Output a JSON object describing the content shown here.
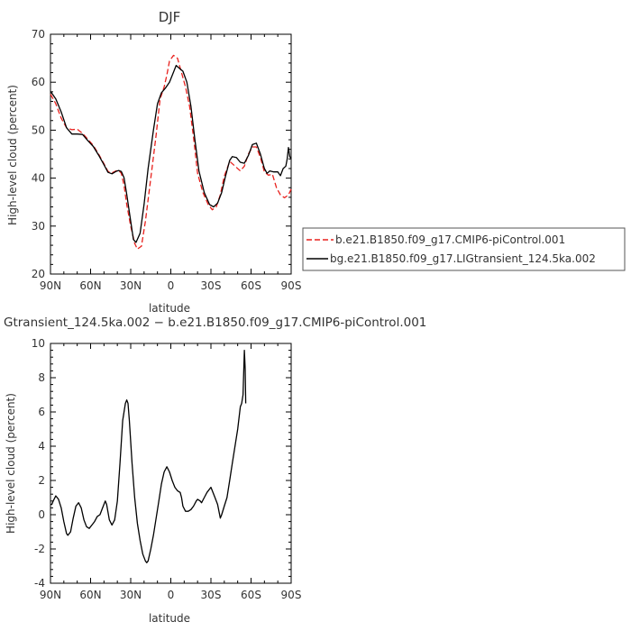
{
  "chart_data": [
    {
      "type": "line",
      "title": "DJF",
      "xlabel": "latitude",
      "ylabel": "High-level cloud (percent)",
      "xlim": [
        90,
        -90
      ],
      "ylim": [
        20,
        70
      ],
      "x_ticks": [
        {
          "v": 90,
          "label": "90N"
        },
        {
          "v": 60,
          "label": "60N"
        },
        {
          "v": 30,
          "label": "30N"
        },
        {
          "v": 0,
          "label": "0"
        },
        {
          "v": -30,
          "label": "30S"
        },
        {
          "v": -60,
          "label": "60S"
        },
        {
          "v": -90,
          "label": "90S"
        }
      ],
      "y_ticks": [
        20,
        30,
        40,
        50,
        60,
        70
      ],
      "legend_position": "right",
      "series": [
        {
          "name": "b.e21.B1850.f09_g17.CMIP6-piControl.001",
          "color": "#e8201c",
          "dash": "dashed",
          "points": [
            [
              90,
              57.5
            ],
            [
              86,
              55.5
            ],
            [
              82,
              52.5
            ],
            [
              78,
              50.5
            ],
            [
              74,
              50.1
            ],
            [
              70,
              50.2
            ],
            [
              66,
              49.3
            ],
            [
              62,
              48.1
            ],
            [
              58,
              46.8
            ],
            [
              54,
              45
            ],
            [
              50,
              43
            ],
            [
              47,
              41.4
            ],
            [
              44,
              41.1
            ],
            [
              41,
              41.5
            ],
            [
              39,
              41.6
            ],
            [
              37,
              41
            ],
            [
              35,
              38.5
            ],
            [
              33,
              34.5
            ],
            [
              30,
              30
            ],
            [
              27,
              26.4
            ],
            [
              25,
              25.2
            ],
            [
              22,
              25.8
            ],
            [
              19,
              31
            ],
            [
              15,
              40
            ],
            [
              11,
              49
            ],
            [
              8,
              56.5
            ],
            [
              5,
              59
            ],
            [
              3,
              61.5
            ],
            [
              1,
              64.4
            ],
            [
              -2,
              65.6
            ],
            [
              -5,
              65
            ],
            [
              -8,
              62
            ],
            [
              -11,
              59
            ],
            [
              -14,
              55
            ],
            [
              -17,
              48.5
            ],
            [
              -20,
              41
            ],
            [
              -24,
              37
            ],
            [
              -28,
              34.5
            ],
            [
              -31,
              33.4
            ],
            [
              -34,
              34
            ],
            [
              -37,
              36.5
            ],
            [
              -40,
              40.4
            ],
            [
              -44,
              43.5
            ],
            [
              -48,
              42.5
            ],
            [
              -52,
              41.5
            ],
            [
              -55,
              42.5
            ],
            [
              -58,
              45
            ],
            [
              -61,
              46.5
            ],
            [
              -64,
              46.5
            ],
            [
              -67,
              44.3
            ],
            [
              -70,
              41.3
            ],
            [
              -73,
              40.6
            ],
            [
              -76,
              40.8
            ],
            [
              -79,
              38
            ],
            [
              -82,
              36.5
            ],
            [
              -85,
              35.9
            ],
            [
              -88,
              36.5
            ],
            [
              -90,
              37.7
            ]
          ]
        },
        {
          "name": "bg.e21.B1850.f09_g17.LIGtransient_124.5ka.002",
          "color": "#000000",
          "dash": "solid",
          "points": [
            [
              90,
              58.1
            ],
            [
              86,
              56.5
            ],
            [
              82,
              53.8
            ],
            [
              78,
              50.5
            ],
            [
              74,
              49.2
            ],
            [
              70,
              49.2
            ],
            [
              66,
              49.1
            ],
            [
              62,
              47.8
            ],
            [
              58,
              46.6
            ],
            [
              54,
              44.8
            ],
            [
              50,
              42.8
            ],
            [
              47,
              41.2
            ],
            [
              44,
              40.9
            ],
            [
              41,
              41.4
            ],
            [
              39,
              41.6
            ],
            [
              37,
              41.4
            ],
            [
              35,
              40.1
            ],
            [
              33,
              36.6
            ],
            [
              30,
              31
            ],
            [
              28,
              27.2
            ],
            [
              26,
              26.6
            ],
            [
              23,
              28.5
            ],
            [
              20,
              34.5
            ],
            [
              17,
              42
            ],
            [
              13,
              50
            ],
            [
              10,
              55.5
            ],
            [
              7,
              57.8
            ],
            [
              4,
              58.8
            ],
            [
              1,
              60
            ],
            [
              -2,
              62.1
            ],
            [
              -4,
              63.5
            ],
            [
              -6,
              63
            ],
            [
              -9,
              62.3
            ],
            [
              -12,
              60
            ],
            [
              -15,
              55
            ],
            [
              -18,
              48
            ],
            [
              -21,
              41.5
            ],
            [
              -25,
              37
            ],
            [
              -29,
              34.5
            ],
            [
              -32,
              34
            ],
            [
              -35,
              34.8
            ],
            [
              -38,
              37
            ],
            [
              -41,
              40.5
            ],
            [
              -44,
              43.7
            ],
            [
              -46,
              44.5
            ],
            [
              -49,
              44.3
            ],
            [
              -52,
              43.3
            ],
            [
              -55,
              43.1
            ],
            [
              -58,
              44.7
            ],
            [
              -61,
              47
            ],
            [
              -64,
              47.3
            ],
            [
              -67,
              45
            ],
            [
              -70,
              42
            ],
            [
              -72,
              41
            ],
            [
              -74,
              41.5
            ],
            [
              -77,
              41.3
            ],
            [
              -80,
              41.3
            ],
            [
              -82,
              40.5
            ],
            [
              -84,
              42
            ],
            [
              -86,
              42.5
            ],
            [
              -87,
              44
            ],
            [
              -88,
              46.4
            ],
            [
              -89,
              44.5
            ],
            [
              -90,
              44
            ]
          ]
        }
      ]
    },
    {
      "type": "line",
      "title": "Gtransient_124.5ka.002 − b.e21.B1850.f09_g17.CMIP6-piControl.001",
      "xlabel": "latitude",
      "ylabel": "High-level cloud (percent)",
      "xlim": [
        90,
        -90
      ],
      "ylim": [
        -4,
        10
      ],
      "x_ticks": [
        {
          "v": 90,
          "label": "90N"
        },
        {
          "v": 60,
          "label": "60N"
        },
        {
          "v": 30,
          "label": "30N"
        },
        {
          "v": 0,
          "label": "0"
        },
        {
          "v": -30,
          "label": "30S"
        },
        {
          "v": -60,
          "label": "60S"
        },
        {
          "v": -90,
          "label": "90S"
        }
      ],
      "y_ticks": [
        -4,
        -2,
        0,
        2,
        4,
        6,
        8,
        10
      ],
      "series": [
        {
          "name": "",
          "color": "#000000",
          "dash": "solid",
          "points": [
            [
              90,
              0.6
            ],
            [
              89,
              0.6
            ],
            [
              88,
              0.8
            ],
            [
              86,
              1.1
            ],
            [
              84,
              0.9
            ],
            [
              82,
              0.4
            ],
            [
              80,
              -0.4
            ],
            [
              78,
              -1.1
            ],
            [
              77,
              -1.2
            ],
            [
              75,
              -1
            ],
            [
              73,
              -0.2
            ],
            [
              71,
              0.5
            ],
            [
              69,
              0.7
            ],
            [
              67,
              0.4
            ],
            [
              65,
              -0.3
            ],
            [
              63,
              -0.7
            ],
            [
              61,
              -0.8
            ],
            [
              59,
              -0.6
            ],
            [
              57,
              -0.4
            ],
            [
              55,
              -0.1
            ],
            [
              53,
              0
            ],
            [
              51,
              0.4
            ],
            [
              49,
              0.8
            ],
            [
              48,
              0.6
            ],
            [
              46,
              -0.3
            ],
            [
              44,
              -0.6
            ],
            [
              42,
              -0.3
            ],
            [
              40,
              0.8
            ],
            [
              38,
              3
            ],
            [
              36,
              5.5
            ],
            [
              34,
              6.5
            ],
            [
              33,
              6.7
            ],
            [
              32,
              6.5
            ],
            [
              31,
              5.5
            ],
            [
              29,
              3
            ],
            [
              27,
              1
            ],
            [
              25,
              -0.5
            ],
            [
              23,
              -1.5
            ],
            [
              21,
              -2.3
            ],
            [
              19,
              -2.7
            ],
            [
              18,
              -2.8
            ],
            [
              17,
              -2.7
            ],
            [
              15,
              -2
            ],
            [
              13,
              -1.2
            ],
            [
              11,
              -0.2
            ],
            [
              9,
              0.8
            ],
            [
              7,
              1.8
            ],
            [
              5,
              2.5
            ],
            [
              3,
              2.8
            ],
            [
              1,
              2.5
            ],
            [
              -1,
              2
            ],
            [
              -3,
              1.6
            ],
            [
              -5,
              1.4
            ],
            [
              -7,
              1.3
            ],
            [
              -8,
              1
            ],
            [
              -9,
              0.5
            ],
            [
              -11,
              0.2
            ],
            [
              -13,
              0.2
            ],
            [
              -15,
              0.3
            ],
            [
              -17,
              0.5
            ],
            [
              -19,
              0.8
            ],
            [
              -20,
              0.9
            ],
            [
              -22,
              0.8
            ],
            [
              -23,
              0.7
            ],
            [
              -25,
              1
            ],
            [
              -27,
              1.3
            ],
            [
              -29,
              1.5
            ],
            [
              -30,
              1.6
            ],
            [
              -31,
              1.4
            ],
            [
              -33,
              1
            ],
            [
              -35,
              0.6
            ],
            [
              -36,
              0.2
            ],
            [
              -37,
              -0.2
            ],
            [
              -38,
              0
            ],
            [
              -40,
              0.5
            ],
            [
              -42,
              1
            ],
            [
              -44,
              2
            ],
            [
              -46,
              3
            ],
            [
              -48,
              4
            ],
            [
              -50,
              5
            ],
            [
              -52,
              6.3
            ],
            [
              -53,
              6.5
            ],
            [
              -54,
              7
            ],
            [
              -55,
              9.6
            ],
            [
              -55.6,
              8.5
            ],
            [
              -56,
              6.5
            ]
          ]
        }
      ]
    }
  ]
}
